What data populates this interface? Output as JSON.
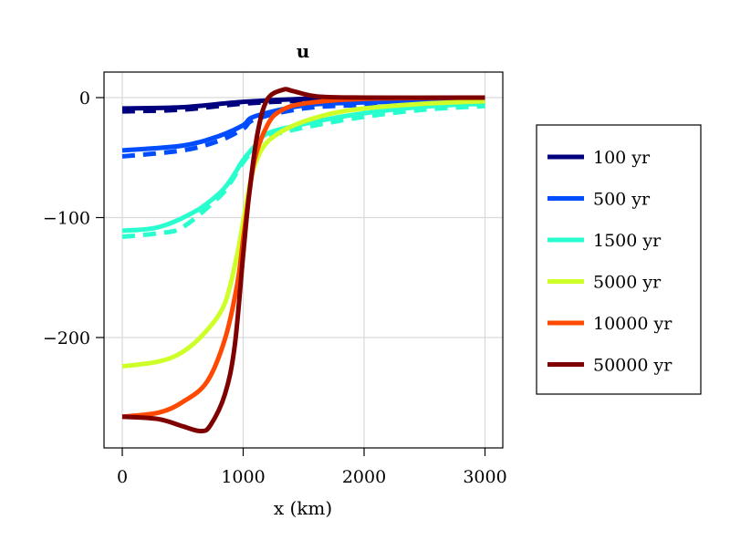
{
  "chart_data": {
    "type": "line",
    "title": "u",
    "xlabel": "x (km)",
    "ylabel": "",
    "xlim": [
      -150,
      3150
    ],
    "ylim": [
      -292,
      21
    ],
    "xticks": [
      0,
      1000,
      2000,
      3000
    ],
    "xtick_labels": [
      "0",
      "1000",
      "2000",
      "3000"
    ],
    "yticks": [
      0,
      -100,
      -200
    ],
    "ytick_labels": [
      "0",
      "−100",
      "−200"
    ],
    "grid": true,
    "legend_position": "outside-right",
    "series": [
      {
        "name": "100 yr",
        "color": "#00007f",
        "x": [
          0,
          500,
          1000,
          1500,
          2000,
          3000
        ],
        "y": [
          -9,
          -8,
          -3.5,
          -1,
          -0.5,
          0
        ],
        "dashed": {
          "x": [
            0,
            500,
            1000,
            1500,
            2000,
            3000
          ],
          "y": [
            -11.5,
            -10,
            -5,
            -2.5,
            -1.5,
            -1
          ]
        }
      },
      {
        "name": "500 yr",
        "color": "#004cff",
        "x": [
          0,
          500,
          800,
          1000,
          1100,
          1500,
          2000,
          3000
        ],
        "y": [
          -44,
          -40,
          -32,
          -23,
          -15.5,
          -6.6,
          -4,
          -2
        ],
        "dashed": {
          "x": [
            0,
            500,
            800,
            1000,
            1100,
            1500,
            2000,
            3000
          ],
          "y": [
            -49,
            -44,
            -36,
            -26,
            -18,
            -9,
            -6,
            -3
          ]
        }
      },
      {
        "name": "1500 yr",
        "color": "#29ffce",
        "x": [
          0,
          300,
          600,
          800,
          900,
          1000,
          1100,
          1200,
          1500,
          2000,
          2500,
          3000
        ],
        "y": [
          -111,
          -108,
          -95,
          -80,
          -68,
          -52,
          -40,
          -30,
          -22,
          -13,
          -7.5,
          -5
        ],
        "dashed": {
          "x": [
            0,
            300,
            500,
            800,
            900,
            1000,
            1100,
            1200,
            1500,
            2000,
            2500,
            3000
          ],
          "y": [
            -116,
            -113,
            -108,
            -83,
            -70,
            -54,
            -42,
            -33,
            -25,
            -16,
            -10,
            -7
          ]
        }
      },
      {
        "name": "5000 yr",
        "color": "#ceff29",
        "x": [
          0,
          300,
          500,
          700,
          850,
          950,
          1000,
          1050,
          1100,
          1200,
          1400,
          1700,
          2000,
          2500,
          3000
        ],
        "y": [
          -224,
          -220,
          -212,
          -194,
          -171,
          -131,
          -103,
          -75,
          -55,
          -37,
          -24,
          -14,
          -9,
          -5,
          -3
        ]
      },
      {
        "name": "10000 yr",
        "color": "#ff4800",
        "x": [
          0,
          300,
          500,
          700,
          850,
          950,
          1000,
          1050,
          1100,
          1200,
          1300,
          1500,
          2000,
          3000
        ],
        "y": [
          -266,
          -262.6,
          -253.7,
          -237,
          -201,
          -156,
          -118,
          -80,
          -49.6,
          -23,
          -11.6,
          -5,
          -1,
          0
        ]
      },
      {
        "name": "50000 yr",
        "color": "#7f0000",
        "x": [
          0,
          300,
          500,
          650,
          730,
          850,
          930,
          1000,
          1050,
          1120,
          1200,
          1330,
          1410,
          1610,
          2000,
          3000
        ],
        "y": [
          -266,
          -268,
          -274,
          -278,
          -273,
          -247,
          -207,
          -131,
          -80,
          -29,
          -1.5,
          6.6,
          5.5,
          1,
          0,
          0
        ]
      }
    ]
  }
}
